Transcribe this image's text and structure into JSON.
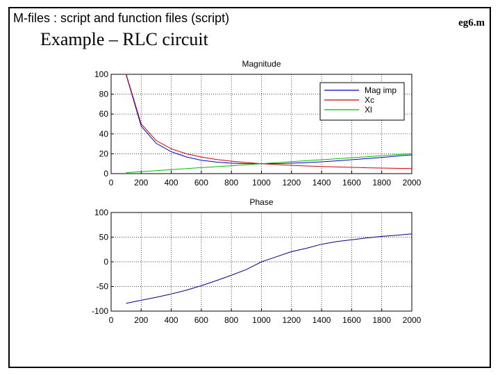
{
  "header": {
    "title": "M-files : script and function files (script)",
    "file": "eg6.m"
  },
  "slide": {
    "title": "Example – RLC circuit"
  },
  "colors": {
    "mag": "#0000cc",
    "xc": "#cc0000",
    "xl": "#00bb00",
    "phase": "#000080"
  },
  "chart_data": [
    {
      "type": "line",
      "title": "Magnitude",
      "xlabel": "",
      "ylabel": "",
      "xlim": [
        0,
        2000
      ],
      "ylim": [
        0,
        100
      ],
      "xticks": [
        0,
        200,
        400,
        600,
        800,
        1000,
        1200,
        1400,
        1600,
        1800,
        2000
      ],
      "yticks": [
        0,
        20,
        40,
        60,
        80,
        100
      ],
      "grid": true,
      "legend": "top-right",
      "x": [
        100,
        200,
        300,
        400,
        500,
        600,
        700,
        800,
        900,
        1000,
        1100,
        1200,
        1300,
        1400,
        1500,
        1600,
        1700,
        1800,
        1900,
        2000
      ],
      "series": [
        {
          "name": "Mag imp",
          "values": [
            99.2,
            47.8,
            30.5,
            22.0,
            16.8,
            13.4,
            11.6,
            10.5,
            10.1,
            10.0,
            10.1,
            10.5,
            11.1,
            11.9,
            12.9,
            14.0,
            15.1,
            16.3,
            17.6,
            18.9
          ]
        },
        {
          "name": "Xc",
          "values": [
            100,
            50,
            33.3,
            25,
            20,
            16.7,
            14.3,
            12.5,
            11.1,
            10,
            9.1,
            8.3,
            7.7,
            7.1,
            6.7,
            6.3,
            5.9,
            5.6,
            5.3,
            5.0
          ]
        },
        {
          "name": "Xl",
          "values": [
            1,
            2,
            3,
            4,
            5,
            6,
            7,
            8,
            9,
            10,
            11,
            12,
            13,
            14,
            15,
            16,
            17,
            18,
            19,
            20
          ]
        }
      ]
    },
    {
      "type": "line",
      "title": "Phase",
      "xlabel": "",
      "ylabel": "",
      "xlim": [
        0,
        2000
      ],
      "ylim": [
        -100,
        100
      ],
      "xticks": [
        0,
        200,
        400,
        600,
        800,
        1000,
        1200,
        1400,
        1600,
        1800,
        2000
      ],
      "yticks": [
        -100,
        -50,
        0,
        50,
        100
      ],
      "grid": true,
      "x": [
        100,
        200,
        300,
        400,
        500,
        600,
        700,
        800,
        900,
        1000,
        1100,
        1200,
        1300,
        1400,
        1500,
        1600,
        1700,
        1800,
        1900,
        2000
      ],
      "series": [
        {
          "name": "",
          "values": [
            -84.2,
            -78.0,
            -72.0,
            -65.4,
            -57.6,
            -48.4,
            -38.1,
            -27.3,
            -15.6,
            0,
            10.3,
            20.6,
            27.5,
            35.6,
            41.0,
            44.6,
            48.4,
            51.5,
            54.0,
            56.6
          ]
        }
      ]
    }
  ]
}
